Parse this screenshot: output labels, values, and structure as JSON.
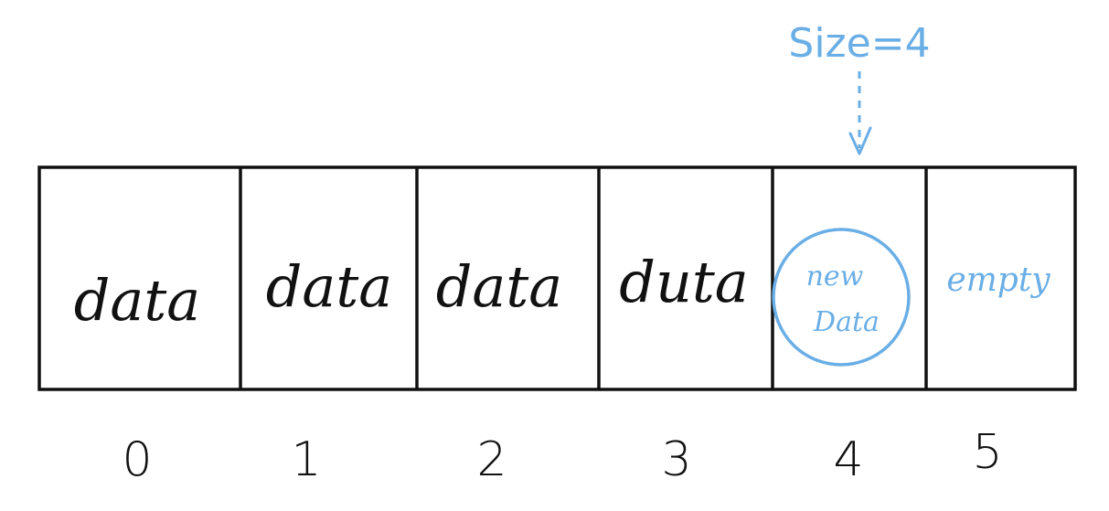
{
  "array": {
    "cells": [
      {
        "text": "data"
      },
      {
        "text": "data"
      },
      {
        "text": "data"
      },
      {
        "text": "duta"
      },
      {
        "text_line1": "new",
        "text_line2": "Data"
      },
      {
        "text": "empty"
      }
    ],
    "indices": [
      "0",
      "1",
      "2",
      "3",
      "4",
      "5"
    ]
  },
  "size_label": "Size=4",
  "colors": {
    "ink": "#111111",
    "highlight": "#6aaee6"
  }
}
